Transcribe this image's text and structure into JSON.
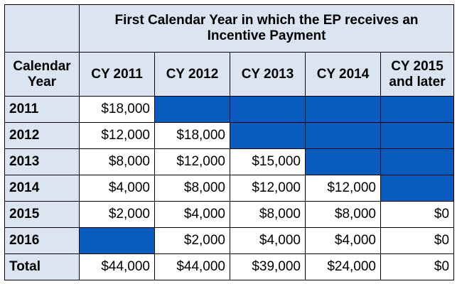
{
  "title_line1": "First Calendar Year in which the EP receives an",
  "title_line2": "Incentive Payment",
  "row_header_line1": "Calendar",
  "row_header_line2": "Year",
  "columns": [
    {
      "line1": "CY 2011",
      "line2": ""
    },
    {
      "line1": "CY 2012",
      "line2": ""
    },
    {
      "line1": "CY 2013",
      "line2": ""
    },
    {
      "line1": "CY 2014",
      "line2": ""
    },
    {
      "line1": "CY 2015",
      "line2": "and later"
    }
  ],
  "rows": [
    {
      "year": "2011",
      "cells": [
        "$18,000",
        null,
        null,
        null,
        null
      ]
    },
    {
      "year": "2012",
      "cells": [
        "$12,000",
        "$18,000",
        null,
        null,
        null
      ]
    },
    {
      "year": "2013",
      "cells": [
        "$8,000",
        "$12,000",
        "$15,000",
        null,
        null
      ]
    },
    {
      "year": "2014",
      "cells": [
        "$4,000",
        "$8,000",
        "$12,000",
        "$12,000",
        null
      ]
    },
    {
      "year": "2015",
      "cells": [
        "$2,000",
        "$4,000",
        "$8,000",
        "$8,000",
        "$0"
      ]
    },
    {
      "year": "2016",
      "cells": [
        null,
        "$2,000",
        "$4,000",
        "$4,000",
        "$0"
      ]
    }
  ],
  "total": {
    "label": "Total",
    "cells": [
      "$44,000",
      "$44,000",
      "$39,000",
      "$24,000",
      "$0"
    ]
  },
  "colors": {
    "header_bg": "#dbe5f1",
    "blocked": "#0a5cbf"
  }
}
